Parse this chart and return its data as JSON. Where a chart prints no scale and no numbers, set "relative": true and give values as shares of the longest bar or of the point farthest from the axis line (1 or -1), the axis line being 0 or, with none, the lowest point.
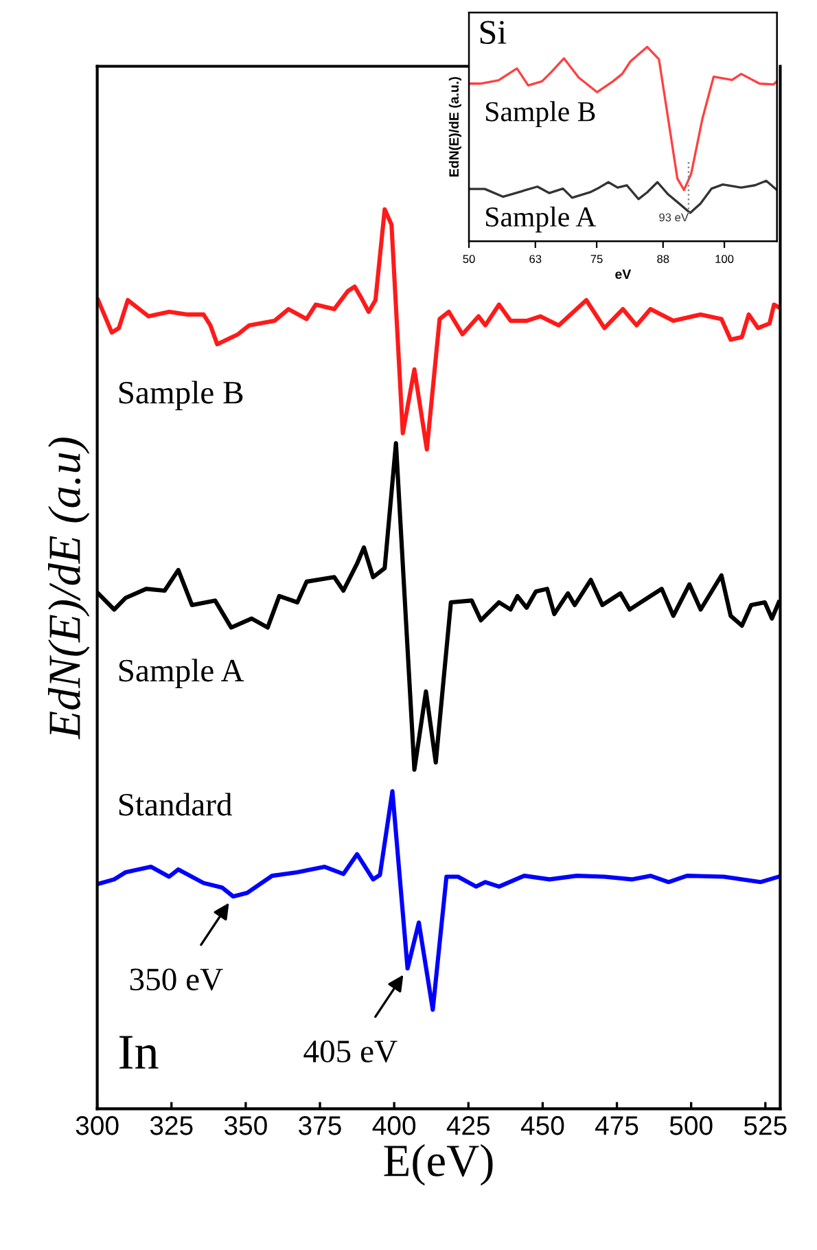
{
  "chart_data": [
    {
      "type": "line",
      "relative": true,
      "xlabel": "E(eV)",
      "ylabel": "EdN(E)/dE (a.u)",
      "xlim": [
        300,
        530
      ],
      "xticks": [
        300,
        325,
        350,
        375,
        400,
        425,
        450,
        475,
        500,
        525
      ],
      "grid": false,
      "legend": false,
      "marker": "none",
      "line_style": "solid",
      "annotations": [
        "In",
        {
          "text": "350 eV",
          "x": 345.8,
          "y": 0.236
        },
        {
          "text": "405 eV",
          "x": 404.5,
          "y": 0.156
        }
      ],
      "series": [
        {
          "name": "Sample B",
          "color": "#ff1a1a",
          "x": [
            300.3,
            304.9,
            307.3,
            310.3,
            314.2,
            317.3,
            324.2,
            330.4,
            335.8,
            338.1,
            340.4,
            347.4,
            351.2,
            359.7,
            364.4,
            370.5,
            373.6,
            379.8,
            384.4,
            386.7,
            389.0,
            391.4,
            393.7,
            396.8,
            399.1,
            402.9,
            406.8,
            411.0,
            415.3,
            418.4,
            423.0,
            428.4,
            430.7,
            435.3,
            439.2,
            444.6,
            449.2,
            455.4,
            464.7,
            470.8,
            477.0,
            481.6,
            486.3,
            494.0,
            503.2,
            510.2,
            513.3,
            517.1,
            519.4,
            522.5,
            526.4,
            527.9,
            529.5
          ],
          "values": [
            0.899,
            0.863,
            0.868,
            0.899,
            0.889,
            0.881,
            0.886,
            0.883,
            0.883,
            0.871,
            0.85,
            0.861,
            0.871,
            0.876,
            0.889,
            0.878,
            0.894,
            0.889,
            0.909,
            0.914,
            0.901,
            0.886,
            0.899,
            1.0,
            0.983,
            0.751,
            0.822,
            0.733,
            0.878,
            0.886,
            0.861,
            0.881,
            0.871,
            0.894,
            0.876,
            0.876,
            0.881,
            0.871,
            0.899,
            0.868,
            0.889,
            0.871,
            0.889,
            0.876,
            0.883,
            0.878,
            0.855,
            0.858,
            0.883,
            0.868,
            0.873,
            0.894,
            0.891
          ]
        },
        {
          "name": "Sample A",
          "color": "#000000",
          "x": [
            300.3,
            305.7,
            309.6,
            316.5,
            322.7,
            327.3,
            331.9,
            339.7,
            345.1,
            352.0,
            357.4,
            361.3,
            367.4,
            370.5,
            379.8,
            382.9,
            387.5,
            389.8,
            392.9,
            396.8,
            400.6,
            406.8,
            410.7,
            414.0,
            419.1,
            426.1,
            429.2,
            435.3,
            439.2,
            441.5,
            444.6,
            447.7,
            451.5,
            453.9,
            458.5,
            460.8,
            466.2,
            470.1,
            476.2,
            479.3,
            486.3,
            490.1,
            494.0,
            499.4,
            503.2,
            510.2,
            513.3,
            517.1,
            520.2,
            524.8,
            527.2,
            529.5
          ],
          "values": [
            0.573,
            0.555,
            0.568,
            0.578,
            0.576,
            0.599,
            0.56,
            0.565,
            0.535,
            0.545,
            0.535,
            0.57,
            0.563,
            0.586,
            0.591,
            0.576,
            0.606,
            0.624,
            0.591,
            0.601,
            0.74,
            0.377,
            0.464,
            0.385,
            0.563,
            0.565,
            0.543,
            0.563,
            0.555,
            0.57,
            0.557,
            0.575,
            0.578,
            0.55,
            0.573,
            0.56,
            0.588,
            0.56,
            0.573,
            0.555,
            0.57,
            0.578,
            0.548,
            0.583,
            0.555,
            0.593,
            0.548,
            0.537,
            0.56,
            0.563,
            0.545,
            0.563
          ]
        },
        {
          "name": "Standard",
          "color": "#0000ff",
          "x": [
            300.3,
            305.7,
            309.6,
            318.1,
            324.2,
            327.3,
            335.8,
            342.0,
            345.8,
            350.5,
            358.9,
            367.4,
            376.6,
            382.9,
            387.5,
            392.9,
            395.2,
            399.4,
            404.5,
            408.3,
            413.0,
            417.6,
            421.5,
            427.6,
            430.7,
            435.3,
            443.8,
            452.3,
            461.5,
            470.8,
            480.0,
            486.3,
            492.4,
            498.6,
            511.0,
            523.3,
            529.5
          ],
          "values": [
            0.25,
            0.255,
            0.263,
            0.269,
            0.258,
            0.266,
            0.251,
            0.246,
            0.236,
            0.24,
            0.259,
            0.263,
            0.269,
            0.261,
            0.283,
            0.255,
            0.26,
            0.353,
            0.156,
            0.207,
            0.11,
            0.258,
            0.258,
            0.247,
            0.252,
            0.247,
            0.259,
            0.255,
            0.259,
            0.258,
            0.255,
            0.259,
            0.252,
            0.259,
            0.258,
            0.252,
            0.258
          ]
        }
      ]
    },
    {
      "type": "line",
      "relative": true,
      "xlabel": "eV",
      "ylabel": "EdN(E)/dE (a.u.)",
      "xlim": [
        50,
        110.3
      ],
      "xticks": [
        50,
        63,
        75,
        88,
        100
      ],
      "grid": false,
      "legend": false,
      "marker": "none",
      "line_style": "solid",
      "annotations": [
        "Si"
      ],
      "ref_lines": [
        {
          "axis": "x",
          "value": 93,
          "label": "93 eV",
          "color": "#888888",
          "line_style": "dotted"
        }
      ],
      "series": [
        {
          "name": "Sample B",
          "color": "#ff4040",
          "x": [
            50.0,
            52.2,
            55.8,
            59.4,
            61.6,
            64.3,
            66.1,
            68.6,
            71.5,
            75.1,
            78.2,
            80.0,
            81.6,
            84.9,
            87.2,
            89.0,
            90.8,
            92.1,
            93.5,
            95.7,
            97.9,
            101.5,
            103.3,
            106.9,
            109.6,
            110.3
          ],
          "values": [
            0.811,
            0.811,
            0.828,
            0.889,
            0.802,
            0.823,
            0.87,
            0.941,
            0.842,
            0.767,
            0.823,
            0.861,
            0.925,
            1.0,
            0.936,
            0.63,
            0.323,
            0.264,
            0.347,
            0.63,
            0.847,
            0.83,
            0.861,
            0.811,
            0.807,
            0.823
          ]
        },
        {
          "name": "Sample A",
          "color": "#333333",
          "x": [
            50.0,
            53.1,
            56.7,
            60.3,
            63.4,
            65.7,
            68.4,
            70.2,
            73.7,
            75.5,
            77.3,
            79.1,
            80.9,
            83.2,
            84.9,
            86.9,
            89.0,
            91.2,
            93.3,
            95.3,
            97.5,
            99.7,
            103.3,
            106.0,
            108.2,
            110.3
          ],
          "values": [
            0.269,
            0.269,
            0.229,
            0.257,
            0.281,
            0.248,
            0.271,
            0.224,
            0.252,
            0.276,
            0.304,
            0.276,
            0.288,
            0.217,
            0.252,
            0.304,
            0.241,
            0.193,
            0.146,
            0.193,
            0.271,
            0.292,
            0.276,
            0.288,
            0.311,
            0.264
          ]
        }
      ]
    }
  ]
}
